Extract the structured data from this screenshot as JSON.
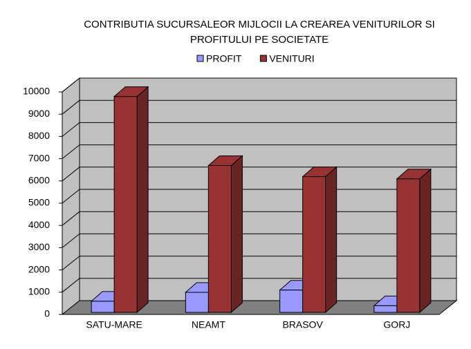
{
  "chart_data": {
    "type": "bar3d",
    "title": [
      "CONTRIBUTIA SUCURSALEOR MIJLOCII LA CREAREA VENITURILOR SI",
      "PROFITULUI PE SOCIETATE"
    ],
    "categories": [
      "SATU-MARE",
      "NEAMT",
      "BRASOV",
      "GORJ"
    ],
    "series": [
      {
        "name": "PROFIT",
        "color": "#9999ff",
        "values": [
          500,
          900,
          1000,
          300
        ]
      },
      {
        "name": "VENITURI",
        "color": "#993333",
        "values": [
          9700,
          6600,
          6100,
          6000
        ]
      }
    ],
    "ylim": [
      0,
      10000
    ],
    "yticks": [
      0,
      1000,
      2000,
      3000,
      4000,
      5000,
      6000,
      7000,
      8000,
      9000,
      10000
    ],
    "grid": true,
    "legend": "top"
  }
}
